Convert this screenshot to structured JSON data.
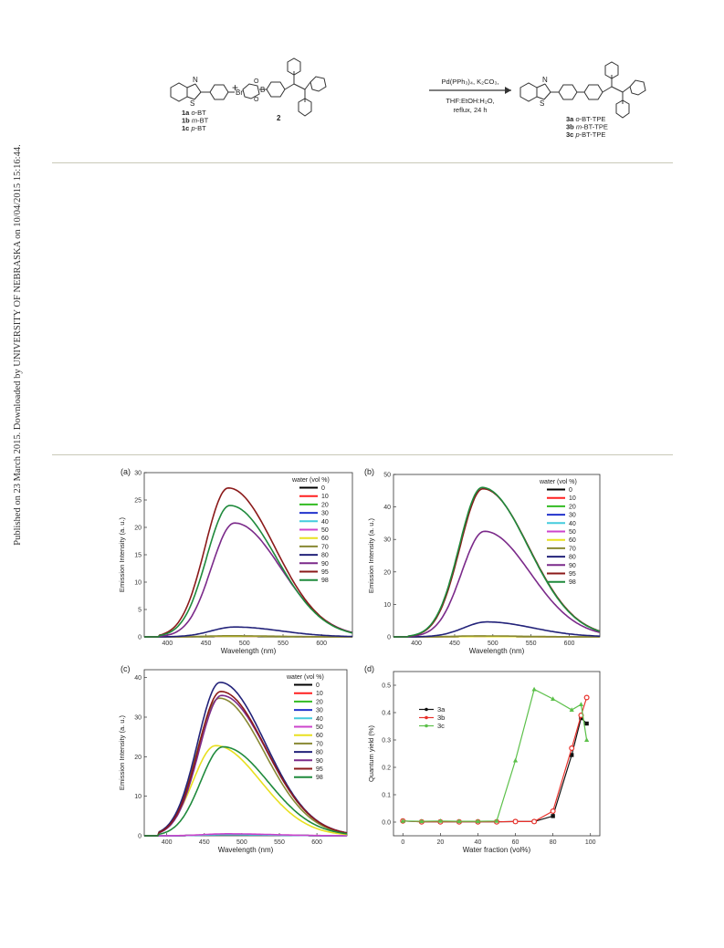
{
  "side_note": "Published on 23 March 2015. Downloaded by UNIVERSITY OF NEBRASKA on 10/04/2015 15:16:44.",
  "scheme": {
    "reactant1_sub": "Br",
    "reactant1_labels": [
      {
        "num": "1a",
        "name": "o-BT"
      },
      {
        "num": "1b",
        "name": "m-BT"
      },
      {
        "num": "1c",
        "name": "p-BT"
      }
    ],
    "plus": "+",
    "reactant2_label": "2",
    "conditions_top": "Pd(PPh₃)₄, K₂CO₃,",
    "conditions_mid": "THF:EtOH:H₂O,",
    "conditions_bot": "reflux, 24 h",
    "product_labels": [
      {
        "num": "3a",
        "name": "o-BT-TPE"
      },
      {
        "num": "3b",
        "name": "m-BT-TPE"
      },
      {
        "num": "3c",
        "name": "p-BT-TPE"
      }
    ],
    "atom_N": "N",
    "atom_S": "S",
    "atom_B": "B",
    "atom_O": "O"
  },
  "chart_data": [
    {
      "id": "a",
      "panel_label": "(a)",
      "type": "line",
      "xlabel": "Wavelength (nm)",
      "ylabel": "Emission Intensity (a. u.)",
      "xlim": [
        370,
        640
      ],
      "ylim": [
        0,
        30
      ],
      "xticks": [
        400,
        450,
        500,
        550,
        600
      ],
      "yticks": [
        0,
        5,
        10,
        15,
        20,
        25,
        30
      ],
      "legend_title": "water (vol %)",
      "legend_position": "top-right",
      "series": [
        {
          "name": "0",
          "color": "#000000",
          "peak": 0.05,
          "center": 480
        },
        {
          "name": "10",
          "color": "#ff2020",
          "peak": 0.05,
          "center": 480
        },
        {
          "name": "20",
          "color": "#33bb22",
          "peak": 0.05,
          "center": 480
        },
        {
          "name": "30",
          "color": "#2233cc",
          "peak": 0.05,
          "center": 480
        },
        {
          "name": "40",
          "color": "#44ccdd",
          "peak": 0.05,
          "center": 480
        },
        {
          "name": "50",
          "color": "#cc44cc",
          "peak": 0.08,
          "center": 480
        },
        {
          "name": "60",
          "color": "#e8e020",
          "peak": 0.1,
          "center": 480
        },
        {
          "name": "70",
          "color": "#888833",
          "peak": 0.2,
          "center": 480
        },
        {
          "name": "80",
          "color": "#23237a",
          "peak": 1.8,
          "center": 487
        },
        {
          "name": "90",
          "color": "#7b2a8a",
          "peak": 20.8,
          "center": 487
        },
        {
          "name": "95",
          "color": "#8b1a1a",
          "peak": 27.2,
          "center": 479
        },
        {
          "name": "98",
          "color": "#1f8a3c",
          "peak": 24.0,
          "center": 481
        }
      ]
    },
    {
      "id": "b",
      "panel_label": "(b)",
      "type": "line",
      "xlabel": "Wavelength (nm)",
      "ylabel": "Emission Intensity (a. u.)",
      "xlim": [
        370,
        640
      ],
      "ylim": [
        0,
        50
      ],
      "xticks": [
        400,
        450,
        500,
        550,
        600
      ],
      "yticks": [
        0,
        10,
        20,
        30,
        40,
        50
      ],
      "legend_title": "water (vol %)",
      "legend_position": "top-right",
      "series": [
        {
          "name": "0",
          "color": "#000000",
          "peak": 0.1,
          "center": 480
        },
        {
          "name": "10",
          "color": "#ff2020",
          "peak": 0.1,
          "center": 480
        },
        {
          "name": "20",
          "color": "#33bb22",
          "peak": 0.1,
          "center": 480
        },
        {
          "name": "30",
          "color": "#2233cc",
          "peak": 0.1,
          "center": 480
        },
        {
          "name": "40",
          "color": "#44ccdd",
          "peak": 0.1,
          "center": 480
        },
        {
          "name": "50",
          "color": "#cc44cc",
          "peak": 0.1,
          "center": 480
        },
        {
          "name": "60",
          "color": "#e8e020",
          "peak": 0.1,
          "center": 480
        },
        {
          "name": "70",
          "color": "#888833",
          "peak": 0.3,
          "center": 480
        },
        {
          "name": "80",
          "color": "#23237a",
          "peak": 4.6,
          "center": 492
        },
        {
          "name": "90",
          "color": "#7b2a8a",
          "peak": 32.5,
          "center": 489
        },
        {
          "name": "95",
          "color": "#8b1a1a",
          "peak": 45.6,
          "center": 487
        },
        {
          "name": "98",
          "color": "#1f8a3c",
          "peak": 46.0,
          "center": 486
        }
      ]
    },
    {
      "id": "c",
      "panel_label": "(c)",
      "type": "line",
      "xlabel": "Wavelength (nm)",
      "ylabel": "Emission Intensity (a. u.)",
      "xlim": [
        370,
        640
      ],
      "ylim": [
        0,
        42
      ],
      "xticks": [
        400,
        450,
        500,
        550,
        600
      ],
      "yticks": [
        0,
        10,
        20,
        30,
        40
      ],
      "legend_title": "water (vol %)",
      "legend_position": "top-right",
      "series": [
        {
          "name": "0",
          "color": "#000000",
          "peak": 0.3,
          "center": 480
        },
        {
          "name": "10",
          "color": "#ff2020",
          "peak": 0.3,
          "center": 480
        },
        {
          "name": "20",
          "color": "#33bb22",
          "peak": 0.3,
          "center": 480
        },
        {
          "name": "30",
          "color": "#2233cc",
          "peak": 0.3,
          "center": 480
        },
        {
          "name": "40",
          "color": "#44ccdd",
          "peak": 0.3,
          "center": 480
        },
        {
          "name": "50",
          "color": "#cc44cc",
          "peak": 0.5,
          "center": 480
        },
        {
          "name": "60",
          "color": "#e8e020",
          "peak": 22.8,
          "center": 465
        },
        {
          "name": "70",
          "color": "#888833",
          "peak": 34.8,
          "center": 470
        },
        {
          "name": "80",
          "color": "#23237a",
          "peak": 38.8,
          "center": 471
        },
        {
          "name": "90",
          "color": "#7b2a8a",
          "peak": 35.5,
          "center": 473
        },
        {
          "name": "95",
          "color": "#8b1a1a",
          "peak": 36.5,
          "center": 472
        },
        {
          "name": "98",
          "color": "#1f8a3c",
          "peak": 22.5,
          "center": 475
        }
      ]
    },
    {
      "id": "d",
      "panel_label": "(d)",
      "type": "line",
      "xlabel": "Water fraction (vol%)",
      "ylabel": "Quantum yield (%)",
      "xlim": [
        -5,
        105
      ],
      "ylim": [
        -0.05,
        0.55
      ],
      "xticks": [
        0,
        20,
        40,
        60,
        80,
        100
      ],
      "yticks": [
        0.0,
        0.1,
        0.2,
        0.3,
        0.4,
        0.5
      ],
      "legend_position": "top-left",
      "x": [
        0,
        10,
        20,
        30,
        40,
        50,
        60,
        70,
        80,
        90,
        95,
        98
      ],
      "series": [
        {
          "name": "3a",
          "color": "#111111",
          "marker": "square",
          "values": [
            0.004,
            0.001,
            0.001,
            0.001,
            0.001,
            0.001,
            0.002,
            0.002,
            0.022,
            0.245,
            0.38,
            0.36
          ]
        },
        {
          "name": "3b",
          "color": "#e8302a",
          "marker": "circle",
          "values": [
            0.004,
            0.001,
            0.001,
            0.001,
            0.001,
            0.001,
            0.002,
            0.002,
            0.04,
            0.27,
            0.39,
            0.455
          ]
        },
        {
          "name": "3c",
          "color": "#5cc04a",
          "marker": "triangle",
          "values": [
            0.004,
            0.003,
            0.004,
            0.003,
            0.003,
            0.004,
            0.225,
            0.485,
            0.45,
            0.41,
            0.43,
            0.3
          ]
        }
      ]
    }
  ]
}
